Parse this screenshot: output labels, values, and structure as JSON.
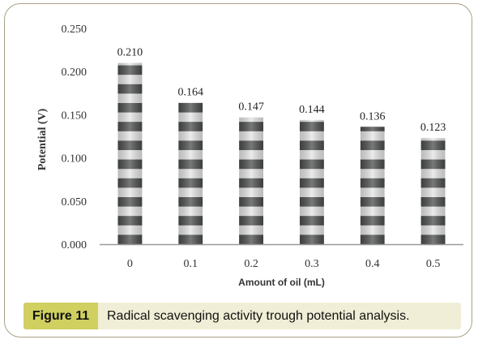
{
  "figure": {
    "label": "Figure 11",
    "caption": "Radical scavenging activity trough potential analysis."
  },
  "colors": {
    "frame_border": "#a7a288",
    "caption_bg": "#f0eed6",
    "caption_label_bg": "#cfd05f",
    "bar_dark": "#4b4d4d",
    "bar_light": "#e4e4e4",
    "axis": "#9a9a9a"
  },
  "chart_data": {
    "type": "bar",
    "categories": [
      "0",
      "0.1",
      "0.2",
      "0.3",
      "0.4",
      "0.5"
    ],
    "values": [
      0.21,
      0.164,
      0.147,
      0.144,
      0.136,
      0.123
    ],
    "value_labels": [
      "0.210",
      "0.164",
      "0.147",
      "0.144",
      "0.136",
      "0.123"
    ],
    "xlabel": "Amount of oil (mL)",
    "ylabel": "Potential (V)",
    "ylim": [
      0,
      0.25
    ],
    "yticks": [
      0,
      0.05,
      0.1,
      0.15,
      0.2,
      0.25
    ],
    "ytick_labels": [
      "0.000",
      "0.050",
      "0.100",
      "0.150",
      "0.200",
      "0.250"
    ],
    "grid": false,
    "legend": "none",
    "bar_pattern": "horizontal-stripes"
  }
}
